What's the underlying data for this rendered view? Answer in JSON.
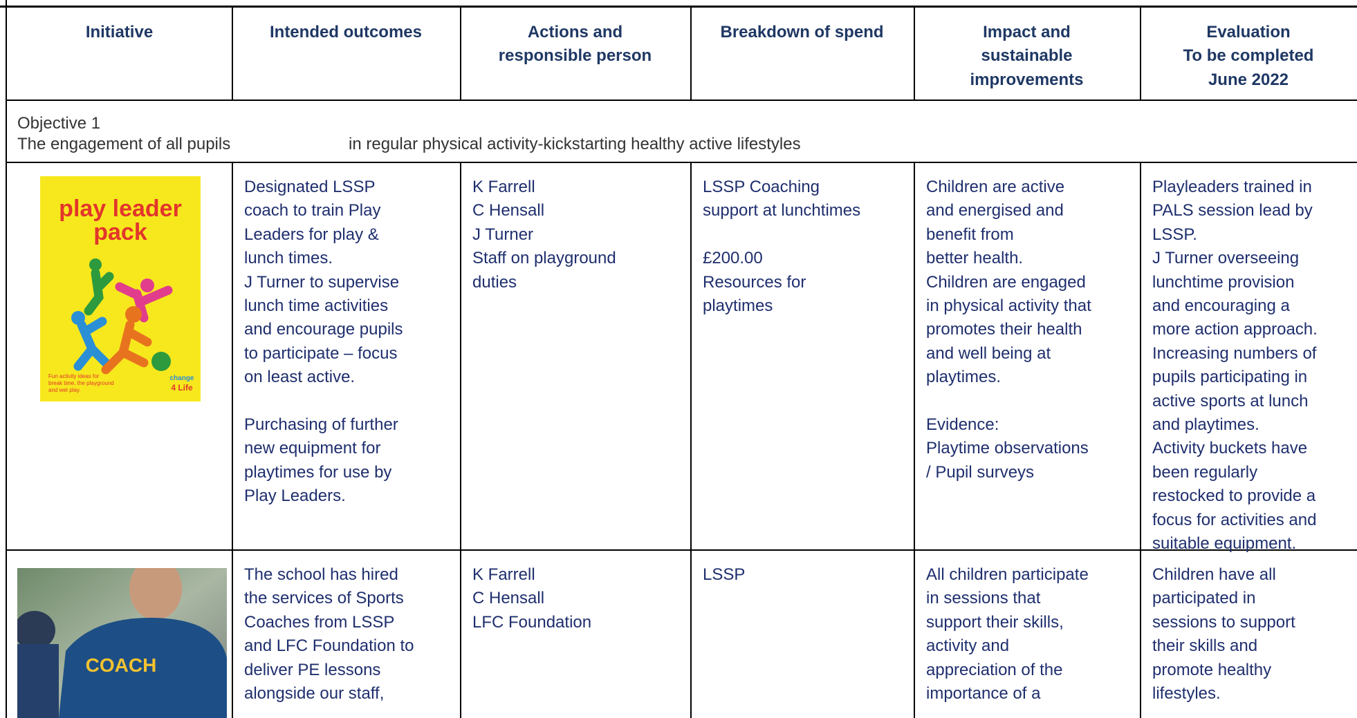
{
  "table": {
    "header": [
      [
        "Initiative"
      ],
      [
        "Intended outcomes"
      ],
      [
        "Actions and",
        "responsible  person"
      ],
      [
        "Breakdown of spend"
      ],
      [
        "Impact and",
        "sustainable",
        "improvements"
      ],
      [
        "Evaluation",
        "To be completed",
        "June 2022"
      ]
    ],
    "objective": {
      "label": "Objective 1",
      "text_left": "The engagement of all pupils",
      "text_right": "in regular physical activity-kickstarting healthy active lifestyles"
    },
    "rows": [
      {
        "image": {
          "title_1": "play leader",
          "title_2": "pack",
          "caption": [
            "Fun activity ideas for",
            "break time, the playground",
            "and wet play."
          ],
          "logo_1": "change",
          "logo_2": "4 Life"
        },
        "cells": [
          [
            [
              "Designated LSSP",
              "coach to train Play",
              "Leaders for play &",
              "lunch times.",
              "J Turner to supervise",
              "lunch time activities",
              "and encourage pupils",
              "to participate – focus",
              "on least active."
            ],
            [
              "Purchasing of further",
              "new equipment for",
              "playtimes for use by",
              "Play Leaders."
            ]
          ],
          [
            [
              "K Farrell",
              "C Hensall",
              "J Turner",
              "Staff on playground",
              "duties"
            ]
          ],
          [
            [
              "LSSP Coaching",
              "support at lunchtimes"
            ],
            [
              "£200.00",
              "Resources for",
              "playtimes"
            ]
          ],
          [
            [
              "Children are active",
              "and energised and",
              "benefit from",
              "better health.",
              "Children are engaged",
              "in physical activity that",
              "promotes their health",
              "and well being at",
              "playtimes."
            ],
            [
              "Evidence:",
              "Playtime observations",
              "/ Pupil surveys"
            ]
          ],
          [
            [
              "Playleaders trained in",
              "PALS session lead by",
              "LSSP.",
              "J Turner overseeing",
              "lunchtime provision",
              "and encouraging a",
              "more action approach.",
              "Increasing numbers of",
              "pupils participating in",
              "active sports at lunch",
              "and playtimes.",
              "Activity buckets have",
              "been regularly",
              "restocked to provide a",
              "focus for activities and",
              "suitable equipment."
            ]
          ]
        ]
      },
      {
        "image": {
          "shirt_text": "COACH"
        },
        "cells": [
          [
            [
              "The school has hired",
              "the services of Sports",
              "Coaches from LSSP",
              "and LFC Foundation to",
              "deliver PE lessons",
              "alongside our staff,"
            ]
          ],
          [
            [
              "K Farrell",
              "C Hensall",
              "LFC Foundation"
            ]
          ],
          [
            [
              "LSSP"
            ]
          ],
          [
            [
              "All children participate",
              "in sessions that",
              "support their skills,",
              "activity and",
              "appreciation of the",
              "importance of a"
            ]
          ],
          [
            [
              "Children have all",
              "participated in",
              "sessions to support",
              "their skills and",
              "promote healthy",
              "lifestyles."
            ]
          ]
        ]
      }
    ]
  }
}
